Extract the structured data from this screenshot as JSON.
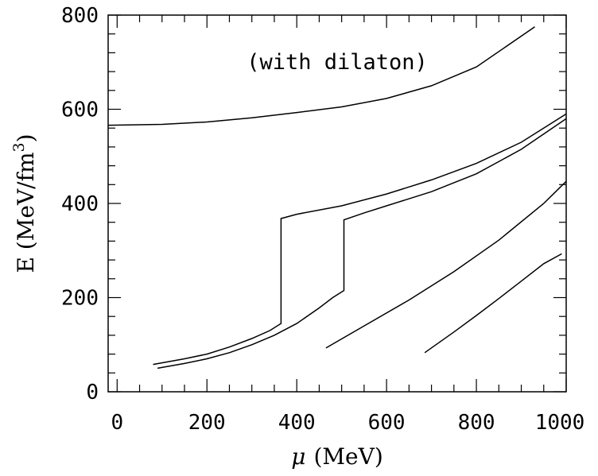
{
  "chart_data": {
    "type": "line",
    "title": "",
    "xlabel_symbol": "μ",
    "xlabel_unit": "(MeV)",
    "ylabel": "E (MeV/fm",
    "ylabel_exponent": "3",
    "ylabel_close": ")",
    "annotation": "(with dilaton)",
    "xlim": [
      -20,
      1000
    ],
    "ylim": [
      0,
      800
    ],
    "x_ticks": [
      0,
      200,
      400,
      600,
      800,
      1000
    ],
    "y_ticks": [
      0,
      200,
      400,
      600,
      800
    ],
    "x_tick_labels": [
      "0",
      "200",
      "400",
      "600",
      "800",
      "1000"
    ],
    "y_tick_labels": [
      "0",
      "200",
      "400",
      "600",
      "800"
    ],
    "x_minor_step": 50,
    "y_minor_step": 40,
    "grid": false,
    "series": [
      {
        "x": [
          -20,
          100,
          200,
          300,
          400,
          500,
          600,
          700,
          800,
          930
        ],
        "y": [
          566,
          568,
          573,
          582,
          593,
          605,
          623,
          650,
          690,
          775
        ]
      },
      {
        "x": [
          80,
          150,
          200,
          250,
          300,
          340,
          365,
          365,
          400,
          500,
          600,
          700,
          800,
          900,
          1000
        ],
        "y": [
          58,
          70,
          80,
          95,
          113,
          130,
          145,
          368,
          377,
          395,
          420,
          450,
          485,
          530,
          590
        ]
      },
      {
        "x": [
          90,
          150,
          200,
          250,
          300,
          350,
          400,
          450,
          480,
          505,
          505,
          550,
          600,
          700,
          800,
          900,
          1000
        ],
        "y": [
          50,
          60,
          70,
          83,
          100,
          120,
          145,
          178,
          200,
          215,
          365,
          380,
          395,
          425,
          463,
          515,
          580
        ]
      },
      {
        "x": [
          465,
          550,
          650,
          750,
          850,
          950,
          1000
        ],
        "y": [
          93,
          140,
          195,
          255,
          322,
          400,
          447
        ]
      },
      {
        "x": [
          685,
          750,
          800,
          850,
          900,
          950,
          990
        ],
        "y": [
          83,
          127,
          162,
          198,
          235,
          272,
          293
        ]
      }
    ]
  }
}
